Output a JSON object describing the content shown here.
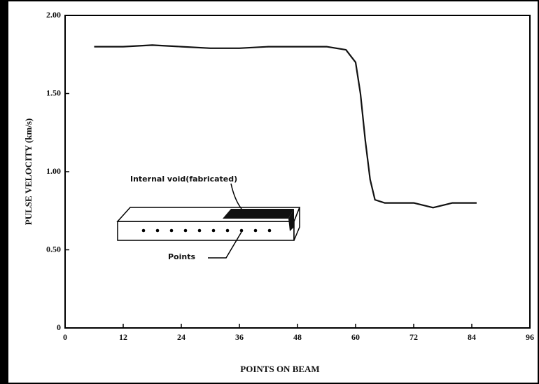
{
  "chart_data": {
    "type": "line",
    "x_label": "POINTS ON BEAM",
    "y_label": "PULSE VELOCITY (km/s)",
    "annotations": [
      "Internal void(fabricated)",
      "Points"
    ],
    "xlim": [
      0,
      96
    ],
    "xticks": [
      0,
      12,
      24,
      36,
      48,
      60,
      72,
      84,
      96
    ],
    "ylim": [
      0,
      2
    ],
    "yticks": [
      0,
      {
        "value": 0.5,
        "label": "0.50"
      },
      {
        "value": 1,
        "label": "1.00"
      },
      {
        "value": 1.5,
        "label": "1.50"
      },
      {
        "value": 2,
        "label": "2.00"
      }
    ],
    "series": [
      {
        "color": "#111111",
        "x": [
          6,
          12,
          18,
          24,
          30,
          36,
          42,
          48,
          54,
          58,
          60,
          61,
          62,
          63,
          64,
          66,
          72,
          76,
          80,
          85
        ],
        "values": [
          1.8,
          1.8,
          1.81,
          1.8,
          1.79,
          1.79,
          1.8,
          1.8,
          1.8,
          1.78,
          1.7,
          1.5,
          1.2,
          0.95,
          0.82,
          0.8,
          0.8,
          0.77,
          0.8,
          0.8
        ]
      }
    ]
  }
}
